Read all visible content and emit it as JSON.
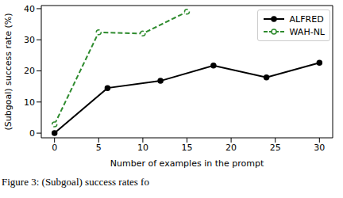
{
  "chart_data": {
    "type": "line",
    "x_label": "Number of examples in the prompt",
    "y_label": "(Subgoal) success rate (%)",
    "xlim": [
      -1.5,
      31.5
    ],
    "xticks": [
      0,
      5,
      10,
      15,
      20,
      25,
      30
    ],
    "ylim": [
      -1.5,
      41
    ],
    "yticks": [
      0,
      10,
      20,
      30,
      40
    ],
    "grid": false,
    "legend": "upper right",
    "series": [
      {
        "name": "ALFRED",
        "color": "#000000",
        "marker": "circle",
        "line_style": "solid",
        "x": [
          0,
          6,
          12,
          18,
          24,
          30
        ],
        "values": [
          0,
          14.5,
          16.8,
          21.7,
          17.9,
          22.6
        ]
      },
      {
        "name": "WAH-NL",
        "color": "#2e8b2e",
        "marker": "open_circle",
        "line_style": "dashed",
        "x": [
          0,
          5,
          10,
          15
        ],
        "values": [
          2.8,
          32.4,
          32,
          39
        ]
      }
    ]
  },
  "caption": "Figure 3: (Subgoal) success rates fo"
}
